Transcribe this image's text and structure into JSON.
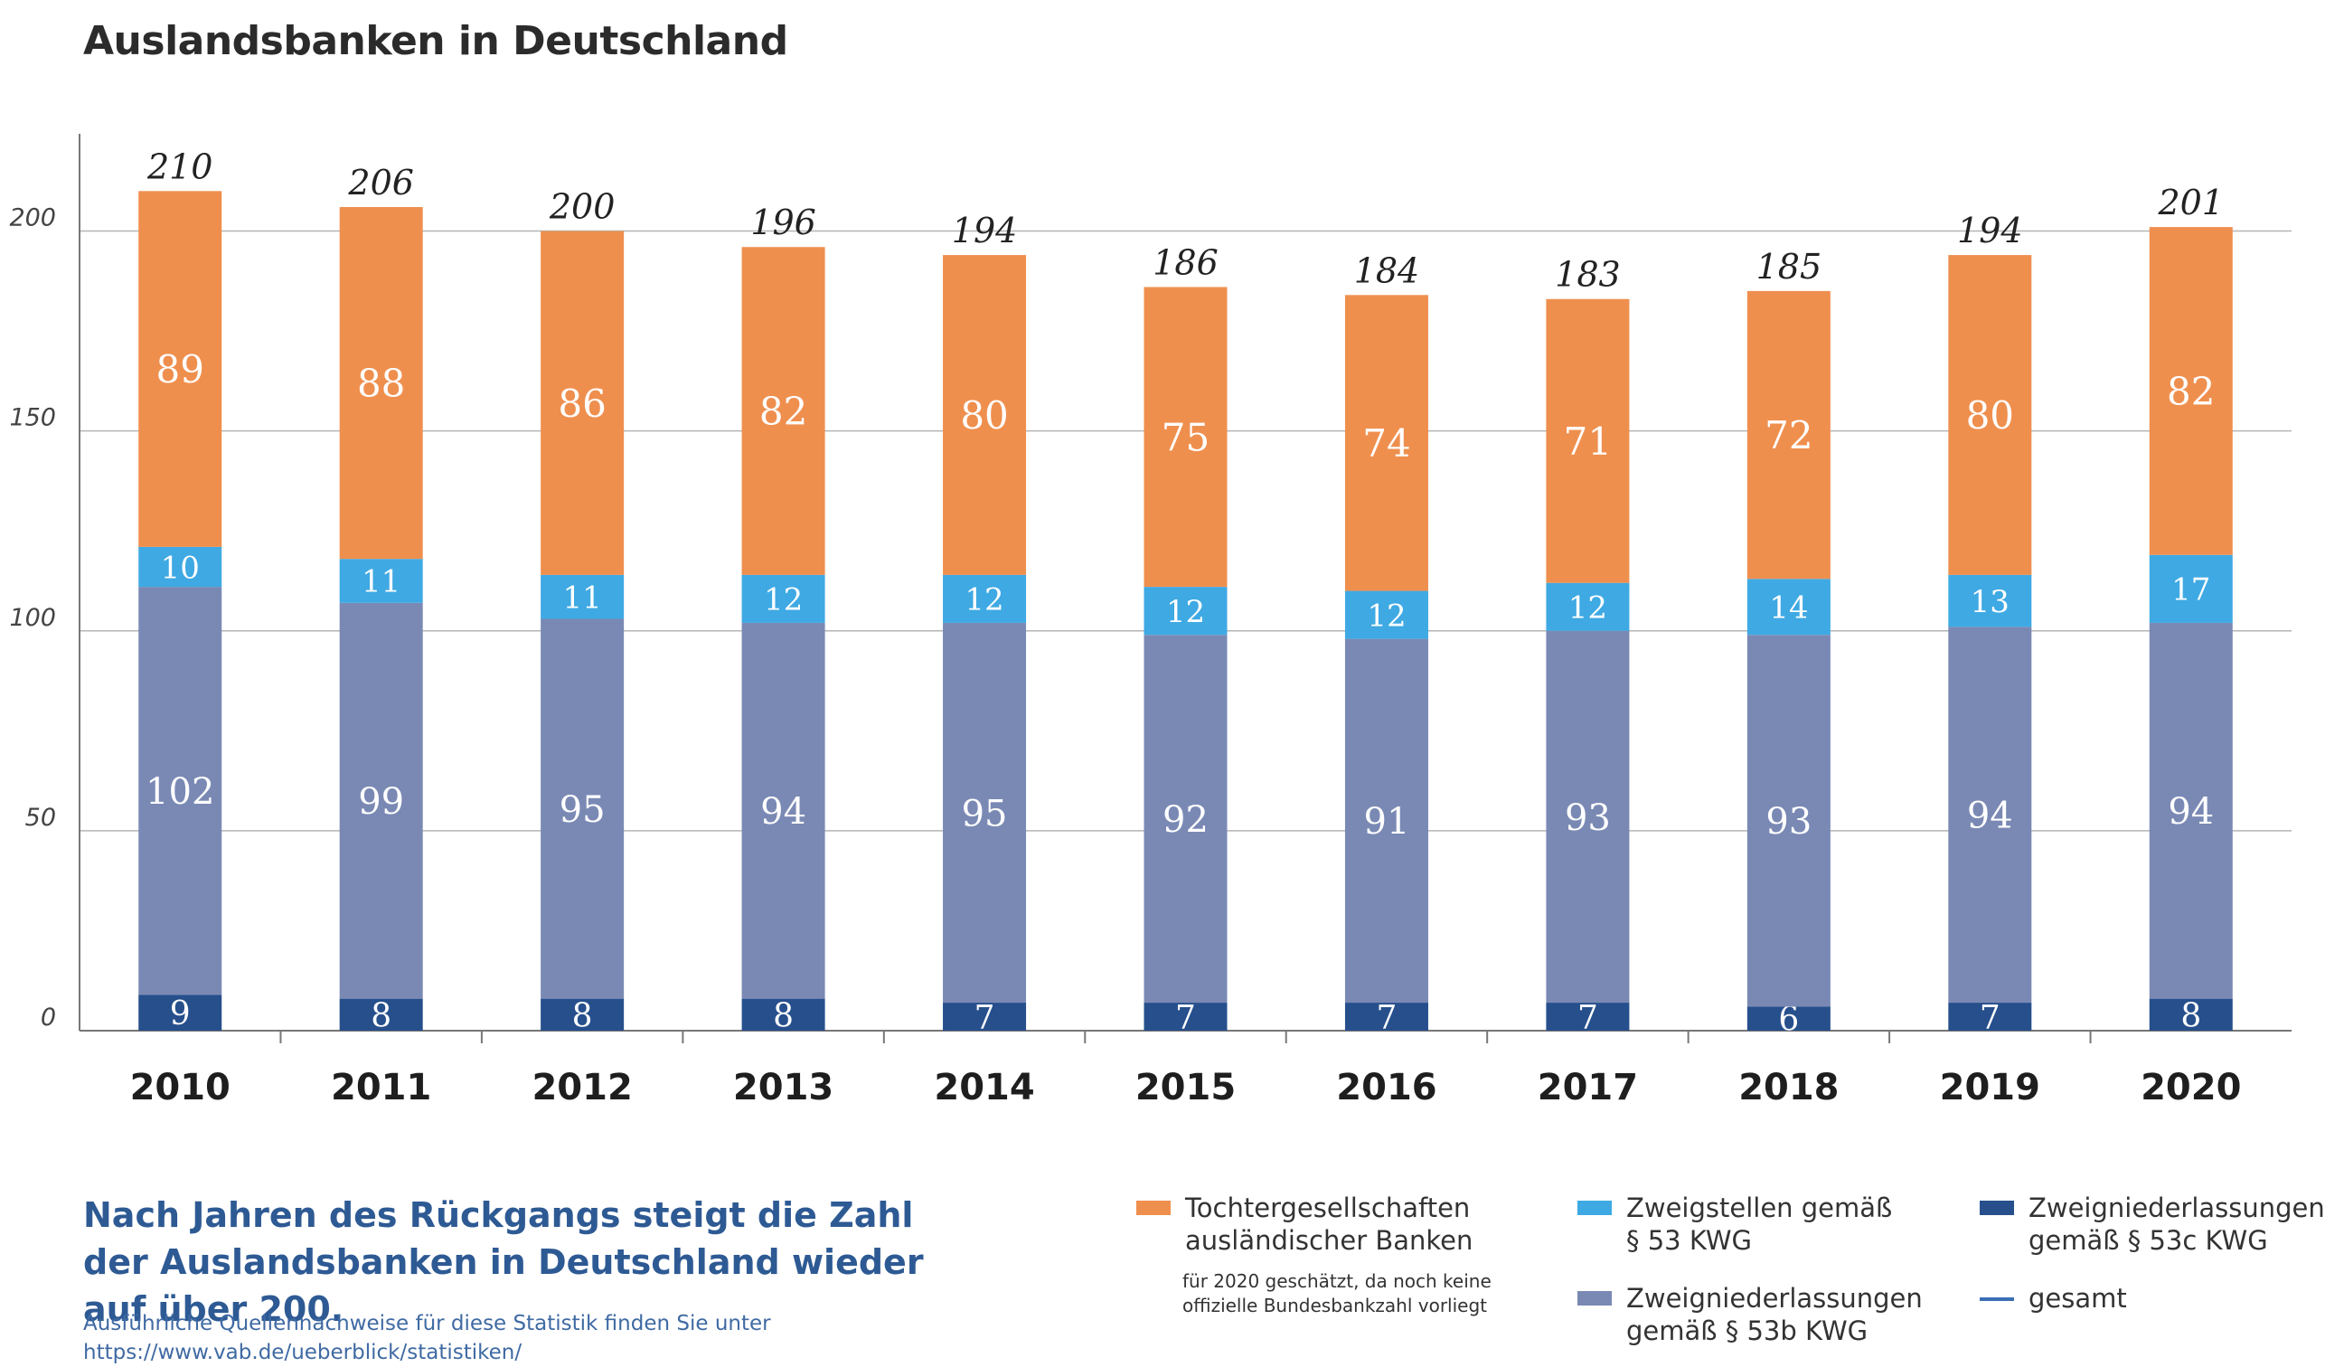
{
  "title": "Auslandsbanken in Deutschland",
  "headline": "Nach Jahren des Rückgangs steigt die Zahl der Auslandsbanken in Deutschland wieder auf über 200.",
  "source": "Ausführliche Quellennachweise für diese Statistik finden Sie unter https://www.vab.de/ueberblick/statistiken/",
  "note": "für 2020 geschätzt, da noch keine\noffizielle Bundesbankzahl vorliegt",
  "legend": [
    {
      "key": "tochter",
      "label": "Tochtergesellschaften\nausländischer Banken"
    },
    {
      "key": "zweigstellen53",
      "label": "Zweigstellen gemäß\n§ 53 KWG"
    },
    {
      "key": "zweignl53c",
      "label": "Zweigniederlassungen\ngemäß § 53c KWG"
    },
    {
      "key": "zweignl53b",
      "label": "Zweigniederlassungen\ngemäß § 53b KWG"
    },
    {
      "key": "gesamt",
      "label": "gesamt"
    }
  ],
  "colors": {
    "tochter": "#ef8f4e",
    "zweigstellen53": "#3fa9e3",
    "zweignl53b": "#7a89b4",
    "zweignl53c": "#264f8c",
    "gesamt": "#3b6fb6",
    "headline": "#2e5a94"
  },
  "chart_data": {
    "type": "bar",
    "stacked": true,
    "categories": [
      "2010",
      "2011",
      "2012",
      "2013",
      "2014",
      "2015",
      "2016",
      "2017",
      "2018",
      "2019",
      "2020"
    ],
    "series": [
      {
        "key": "zweignl53c",
        "name": "Zweigniederlassungen gemäß § 53c KWG",
        "values": [
          9,
          8,
          8,
          8,
          7,
          7,
          7,
          7,
          6,
          7,
          8
        ]
      },
      {
        "key": "zweignl53b",
        "name": "Zweigniederlassungen gemäß § 53b KWG",
        "values": [
          102,
          99,
          95,
          94,
          95,
          92,
          91,
          93,
          93,
          94,
          94
        ]
      },
      {
        "key": "zweigstellen53",
        "name": "Zweigstellen gemäß § 53 KWG",
        "values": [
          10,
          11,
          11,
          12,
          12,
          12,
          12,
          12,
          14,
          13,
          17
        ]
      },
      {
        "key": "tochter",
        "name": "Tochtergesellschaften ausländischer Banken",
        "values": [
          89,
          88,
          86,
          82,
          80,
          75,
          74,
          71,
          72,
          80,
          82
        ]
      }
    ],
    "totals": [
      210,
      206,
      200,
      196,
      194,
      186,
      184,
      183,
      185,
      194,
      201
    ],
    "yticks": [
      0,
      50,
      100,
      150,
      200
    ],
    "ylim": [
      0,
      225
    ],
    "grid": true,
    "legend_position": "bottom"
  }
}
